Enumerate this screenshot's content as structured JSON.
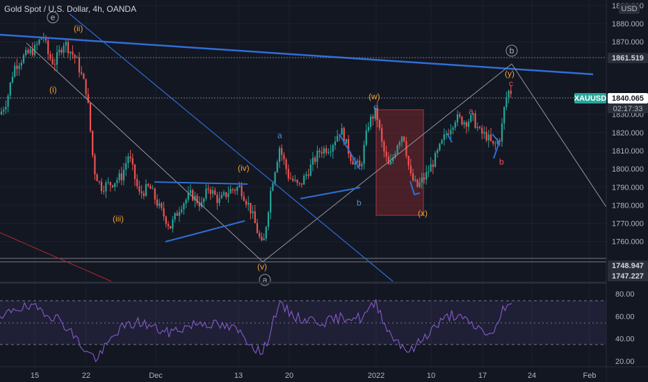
{
  "title": "Gold Spot / U.S. Dollar, 4h, OANDA",
  "currency": "USD",
  "symbol_tag": "XAUUSD",
  "countdown": "02:17:33",
  "price_boxes": [
    {
      "value": "1861.519",
      "price": 1861.519,
      "bg": "#2a2e39",
      "fg": "#d1d4dc"
    },
    {
      "value": "1840.065",
      "price": 1840.065,
      "bg": "#ffffff",
      "fg": "#131722"
    },
    {
      "value": "1748.947",
      "price": 1748.947,
      "bg": "#2a2e39",
      "fg": "#d1d4dc"
    },
    {
      "value": "1747.227",
      "price": 1747.227,
      "bg": "#2a2e39",
      "fg": "#d1d4dc"
    }
  ],
  "price_axis": {
    "ticks": [
      "1890.000",
      "1880.000",
      "1870.000",
      "1830.000",
      "1820.000",
      "1810.000",
      "1800.000",
      "1790.000",
      "1780.000",
      "1770.000",
      "1760.000"
    ],
    "values": [
      1890,
      1880,
      1870,
      1830,
      1820,
      1810,
      1800,
      1790,
      1780,
      1770,
      1760
    ],
    "range": [
      1740,
      1893
    ]
  },
  "rsi_axis": {
    "ticks": [
      "80.00",
      "60.00",
      "40.00",
      "20.00"
    ],
    "values": [
      80,
      60,
      40,
      20
    ],
    "range": [
      15,
      88
    ]
  },
  "time_axis": [
    "15",
    "22",
    "Dec",
    "13",
    "20",
    "2022",
    "10",
    "17",
    "24",
    "Feb"
  ],
  "wave_labels": [
    {
      "text": "(ii)",
      "color": "#f0a030"
    },
    {
      "text": "(i)",
      "color": "#f0a030"
    },
    {
      "text": "(iii)",
      "color": "#f0a030"
    },
    {
      "text": "(iv)",
      "color": "#f0a030"
    },
    {
      "text": "(v)",
      "color": "#f0a030"
    },
    {
      "text": "(w)",
      "color": "#f0a030"
    },
    {
      "text": "(x)",
      "color": "#f0a030"
    },
    {
      "text": "(y)",
      "color": "#f0a030"
    },
    {
      "text": "a",
      "color": "#4a90d9"
    },
    {
      "text": "b",
      "color": "#4a90d9"
    },
    {
      "text": "c",
      "color": "#4a90d9"
    },
    {
      "text": "a",
      "color": "#f05060"
    },
    {
      "text": "b",
      "color": "#f05060"
    },
    {
      "text": "c",
      "color": "#f05060"
    }
  ],
  "circle_labels": [
    {
      "text": "e"
    },
    {
      "text": "b"
    },
    {
      "text": "a"
    }
  ],
  "colors": {
    "background": "#131722",
    "up": "#26a69a",
    "down": "#ef5350",
    "trendline": "#2f6fd6",
    "rsi": "#7e57c2",
    "grid": "#1e222d",
    "box": "#8b2a30"
  }
}
